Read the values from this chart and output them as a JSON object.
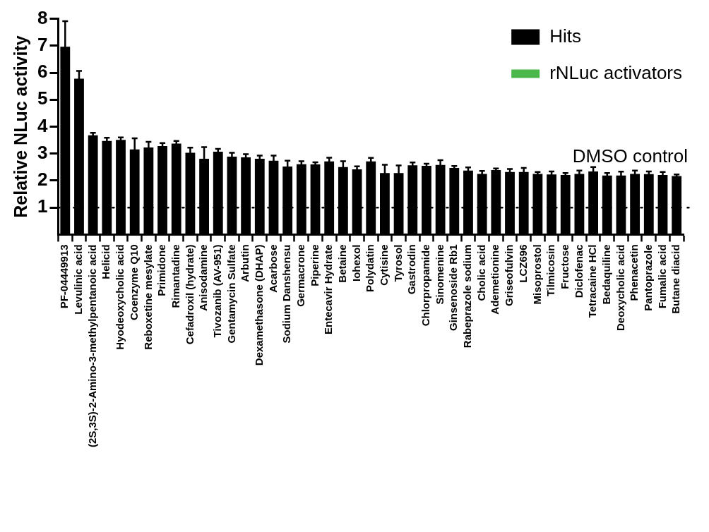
{
  "chart_data": {
    "type": "bar",
    "ylabel": "Relative NLuc activity",
    "categories": [
      "PF-04449913",
      "Levulinic acid",
      "(2S,3S)-2-Amino-3-methylpentanoic acid",
      "Helicid",
      "Hyodeoxycholic acid",
      "Coenzyme Q10",
      "Reboxetine mesylate",
      "Primidone",
      "Rimantadine",
      "Cefadroxil (hydrate)",
      "Anisodamine",
      "Tivozanib (AV-951)",
      "Gentamycin Sulfate",
      "Arbutin",
      "Dexamethasone (DHAP)",
      "Acarbose",
      "Sodium Danshensu",
      "Germacrone",
      "Piperine",
      "Entecavir Hydrate",
      "Betaine",
      "Iohexol",
      "Polydatin",
      "Cytisine",
      "Tyrosol",
      "Gastrodin",
      "Chlorpropamide",
      "Sinomenine",
      "Ginsenoside Rb1",
      "Rabeprazole sodium",
      "Cholic acid",
      "Ademetionine",
      "Griseofulvin",
      "LCZ696",
      "Misoprostol",
      "Tilmicosin",
      "Fructose",
      "Diclofenac",
      "Tetracaine HCl",
      "Bedaquiline",
      "Deoxycholic acid",
      "Phenacetin",
      "Pantoprazole",
      "Fumalic acid",
      "Butane diacid"
    ],
    "series": [
      {
        "name": "Hits",
        "color": "#000000",
        "values": [
          6.96,
          5.78,
          3.68,
          3.47,
          3.51,
          3.16,
          3.23,
          3.28,
          3.37,
          3.03,
          2.81,
          3.07,
          2.89,
          2.86,
          2.81,
          2.74,
          2.52,
          2.61,
          2.6,
          2.71,
          2.5,
          2.42,
          2.71,
          2.28,
          2.28,
          2.57,
          2.55,
          2.58,
          2.47,
          2.37,
          2.25,
          2.39,
          2.32,
          2.32,
          2.25,
          2.23,
          2.21,
          2.25,
          2.34,
          2.19,
          2.19,
          2.25,
          2.24,
          2.21,
          2.17
        ],
        "errors": [
          0.95,
          0.29,
          0.09,
          0.12,
          0.09,
          0.41,
          0.21,
          0.11,
          0.1,
          0.19,
          0.43,
          0.11,
          0.14,
          0.12,
          0.12,
          0.19,
          0.22,
          0.11,
          0.08,
          0.14,
          0.22,
          0.11,
          0.13,
          0.31,
          0.28,
          0.1,
          0.08,
          0.18,
          0.07,
          0.12,
          0.11,
          0.06,
          0.11,
          0.15,
          0.07,
          0.11,
          0.07,
          0.12,
          0.16,
          0.09,
          0.14,
          0.12,
          0.1,
          0.11,
          0.06
        ]
      },
      {
        "name": "rNLuc activators",
        "color": "#4cb84c",
        "values": [
          null,
          null,
          null,
          null,
          null,
          null,
          null,
          null,
          null,
          null,
          null,
          null,
          null,
          null,
          null,
          null,
          null,
          null,
          null,
          null,
          null,
          null,
          null,
          null,
          null,
          null,
          null,
          null,
          null,
          null,
          null,
          null,
          null,
          null,
          null,
          null,
          null,
          null,
          null,
          null,
          null,
          null,
          null,
          null,
          null
        ]
      }
    ],
    "ylim": [
      0,
      8
    ],
    "yticks": [
      1,
      2,
      3,
      4,
      5,
      6,
      7,
      8
    ],
    "grid": false,
    "legend": "top right",
    "ref_lines": [
      {
        "axis": "y",
        "value": 1,
        "label": "DMSO control",
        "line_style": "dotted",
        "color": "#000000"
      }
    ]
  }
}
